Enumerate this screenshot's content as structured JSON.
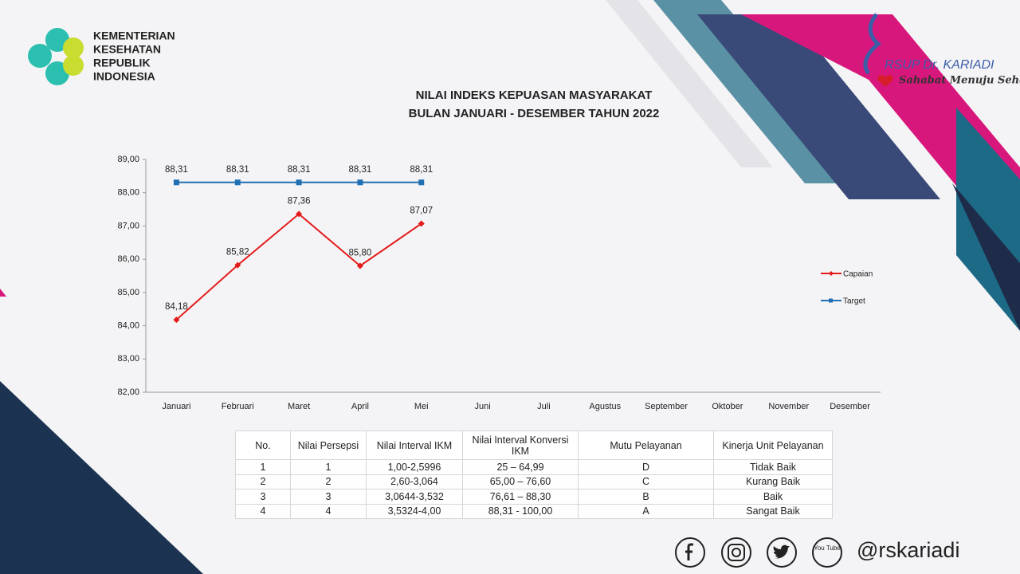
{
  "logo_left": {
    "lines": [
      "KEMENTERIAN",
      "KESEHATAN",
      "REPUBLIK",
      "INDONESIA"
    ]
  },
  "logo_right": {
    "name": "RSUP Dr. KARIADI",
    "tagline": "Sahabat Menuju Sehat"
  },
  "chart_data": {
    "type": "line",
    "title": "NILAI INDEKS KEPUASAN MASYARAKAT",
    "subtitle": "BULAN JANUARI - DESEMBER TAHUN 2022",
    "categories": [
      "Januari",
      "Februari",
      "Maret",
      "April",
      "Mei",
      "Juni",
      "Juli",
      "Agustus",
      "September",
      "Oktober",
      "November",
      "Desember"
    ],
    "series": [
      {
        "name": "Capaian",
        "color": "#e31b1b",
        "marker": "diamond",
        "values": [
          84.18,
          85.82,
          87.36,
          85.8,
          87.07,
          null,
          null,
          null,
          null,
          null,
          null,
          null
        ],
        "value_labels": [
          "84,18",
          "85,82",
          "87,36",
          "85,80",
          "87,07",
          null,
          null,
          null,
          null,
          null,
          null,
          null
        ]
      },
      {
        "name": "Target",
        "color": "#1f6fb4",
        "marker": "square",
        "values": [
          88.31,
          88.31,
          88.31,
          88.31,
          88.31,
          null,
          null,
          null,
          null,
          null,
          null,
          null
        ],
        "value_labels": [
          "88,31",
          "88,31",
          "88,31",
          "88,31",
          "88,31",
          null,
          null,
          null,
          null,
          null,
          null,
          null
        ]
      }
    ],
    "ylim": [
      82,
      89
    ],
    "yticks": [
      {
        "value": 82,
        "label": "82,00"
      },
      {
        "value": 83,
        "label": "83,00"
      },
      {
        "value": 84,
        "label": "84,00"
      },
      {
        "value": 85,
        "label": "85,00"
      },
      {
        "value": 86,
        "label": "86,00"
      },
      {
        "value": 87,
        "label": "87,00"
      },
      {
        "value": 88,
        "label": "88,00"
      },
      {
        "value": 89,
        "label": "89,00"
      }
    ],
    "legend": "right",
    "grid": false
  },
  "table": {
    "header": [
      "No.",
      "Nilai Persepsi",
      "Nilai Interval IKM",
      "Nilai Interval Konversi IKM",
      "Mutu Pelayanan",
      "Kinerja Unit Pelayanan"
    ],
    "rows": [
      [
        "1",
        "1",
        "1,00-2,5996",
        "25 – 64,99",
        "D",
        "Tidak Baik"
      ],
      [
        "2",
        "2",
        "2,60-3,064",
        "65,00 – 76,60",
        "C",
        "Kurang Baik"
      ],
      [
        "3",
        "3",
        "3,0644-3,532",
        "76,61 – 88,30",
        "B",
        "Baik"
      ],
      [
        "4",
        "4",
        "3,5324-4,00",
        "88,31 - 100,00",
        "A",
        "Sangat Baik"
      ]
    ]
  },
  "social": {
    "youtube_label": "You Tube",
    "handle": "@rskariadi"
  }
}
